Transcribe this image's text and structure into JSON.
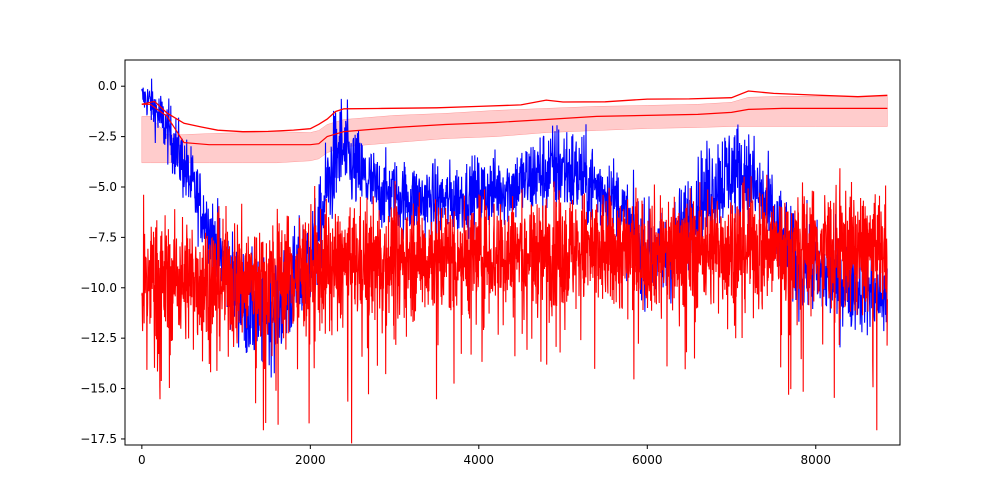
{
  "chart_data": {
    "type": "line",
    "title": "",
    "xlabel": "",
    "ylabel": "",
    "xlim": [
      -200,
      9000
    ],
    "ylim": [
      -17.8,
      1.3
    ],
    "grid": false,
    "x_ticks": [
      0,
      2000,
      4000,
      6000,
      8000
    ],
    "y_ticks": [
      0.0,
      -2.5,
      -5.0,
      -7.5,
      -10.0,
      -12.5,
      -15.0,
      -17.5
    ],
    "x_tick_labels": [
      "0",
      "2000",
      "4000",
      "6000",
      "8000"
    ],
    "y_tick_labels": [
      "0.0",
      "−2.5",
      "−5.0",
      "−7.5",
      "−10.0",
      "−12.5",
      "−15.0",
      "−17.5"
    ],
    "series": [
      {
        "role": "noisy-blue",
        "color": "#0000ff",
        "x": [
          0,
          100,
          250,
          400,
          600,
          800,
          1000,
          1200,
          1400,
          1700,
          2000,
          2100,
          2200,
          2350,
          2500,
          2800,
          3200,
          3600,
          4000,
          4400,
          4700,
          5000,
          5300,
          5600,
          5900,
          6200,
          6500,
          6800,
          7000,
          7200,
          7400,
          7700,
          8000,
          8300,
          8600,
          8850
        ],
        "y": [
          -0.5,
          -0.8,
          -1.8,
          -3.0,
          -5.0,
          -7.0,
          -9.0,
          -10.8,
          -11.5,
          -10.5,
          -8.5,
          -7.5,
          -5.0,
          -3.0,
          -4.0,
          -5.2,
          -5.6,
          -5.7,
          -5.3,
          -5.0,
          -4.4,
          -4.0,
          -4.8,
          -5.5,
          -8.0,
          -8.8,
          -6.5,
          -4.8,
          -4.2,
          -4.5,
          -6.0,
          -8.5,
          -9.2,
          -9.8,
          -10.0,
          -10.6
        ],
        "spread": [
          0.4,
          0.6,
          0.8,
          0.9,
          1.0,
          1.0,
          1.2,
          1.4,
          1.5,
          1.5,
          1.4,
          1.3,
          1.4,
          1.5,
          1.2,
          1.0,
          1.0,
          1.0,
          1.0,
          1.0,
          1.2,
          1.3,
          1.2,
          1.1,
          1.3,
          1.3,
          1.3,
          1.4,
          1.4,
          1.4,
          1.4,
          1.3,
          1.3,
          1.3,
          1.2,
          1.2
        ]
      },
      {
        "role": "noisy-red",
        "color": "#ff0000",
        "x": [
          0,
          500,
          1000,
          1500,
          2000,
          2500,
          3000,
          3500,
          4000,
          4500,
          5000,
          5500,
          6000,
          6500,
          7000,
          7500,
          8000,
          8500,
          8850
        ],
        "y": [
          -9.5,
          -9.6,
          -9.7,
          -9.6,
          -9.2,
          -8.8,
          -8.6,
          -8.5,
          -8.4,
          -8.3,
          -8.2,
          -8.2,
          -8.2,
          -8.1,
          -8.0,
          -8.0,
          -8.0,
          -8.1,
          -8.2
        ],
        "spread": [
          1.6,
          1.7,
          1.7,
          1.7,
          1.7,
          1.6,
          1.6,
          1.6,
          1.6,
          1.6,
          1.6,
          1.6,
          1.6,
          1.6,
          1.6,
          1.6,
          1.6,
          1.6,
          1.6
        ]
      },
      {
        "role": "upper-envelope",
        "color": "#ff0000",
        "x": [
          0,
          150,
          300,
          500,
          700,
          900,
          1200,
          1500,
          1800,
          2000,
          2100,
          2200,
          2300,
          2400,
          2800,
          3500,
          4000,
          4500,
          4800,
          5000,
          5500,
          6000,
          6500,
          7000,
          7200,
          7500,
          8000,
          8500,
          8850
        ],
        "y": [
          -0.9,
          -0.7,
          -1.4,
          -1.8,
          -2.0,
          -2.2,
          -2.2,
          -2.2,
          -2.2,
          -2.1,
          -1.9,
          -1.6,
          -1.2,
          -1.1,
          -1.15,
          -1.1,
          -1.0,
          -0.9,
          -0.7,
          -0.8,
          -0.75,
          -0.7,
          -0.7,
          -0.5,
          -0.3,
          -0.4,
          -0.45,
          -0.45,
          -0.45
        ]
      },
      {
        "role": "mean",
        "color": "#ff0000",
        "band_color": "#ff9999",
        "x": [
          0,
          100,
          300,
          500,
          800,
          1200,
          1600,
          2000,
          2100,
          2200,
          2400,
          3000,
          3600,
          4200,
          4800,
          5400,
          6000,
          6600,
          7000,
          7200,
          7600,
          8000,
          8400,
          8850
        ],
        "y": [
          -0.9,
          -0.9,
          -1.5,
          -2.8,
          -2.9,
          -2.9,
          -2.9,
          -2.9,
          -2.85,
          -2.5,
          -2.25,
          -2.05,
          -1.9,
          -1.8,
          -1.65,
          -1.5,
          -1.45,
          -1.4,
          -1.3,
          -1.15,
          -1.1,
          -1.1,
          -1.1,
          -1.1
        ],
        "lower": [
          -3.8,
          -3.8,
          -3.8,
          -3.8,
          -3.8,
          -3.8,
          -3.8,
          -3.7,
          -3.6,
          -3.3,
          -3.0,
          -2.8,
          -2.6,
          -2.5,
          -2.3,
          -2.2,
          -2.1,
          -2.05,
          -2.0,
          -2.0,
          -2.0,
          -2.0,
          -2.0,
          -2.0
        ],
        "upper": [
          -1.5,
          -1.5,
          -2.4,
          -2.4,
          -2.35,
          -2.3,
          -2.25,
          -2.3,
          -2.2,
          -1.9,
          -1.65,
          -1.45,
          -1.35,
          -1.2,
          -1.1,
          -1.0,
          -0.95,
          -0.9,
          -0.8,
          -0.55,
          -0.5,
          -0.5,
          -0.5,
          -0.5
        ]
      }
    ]
  }
}
